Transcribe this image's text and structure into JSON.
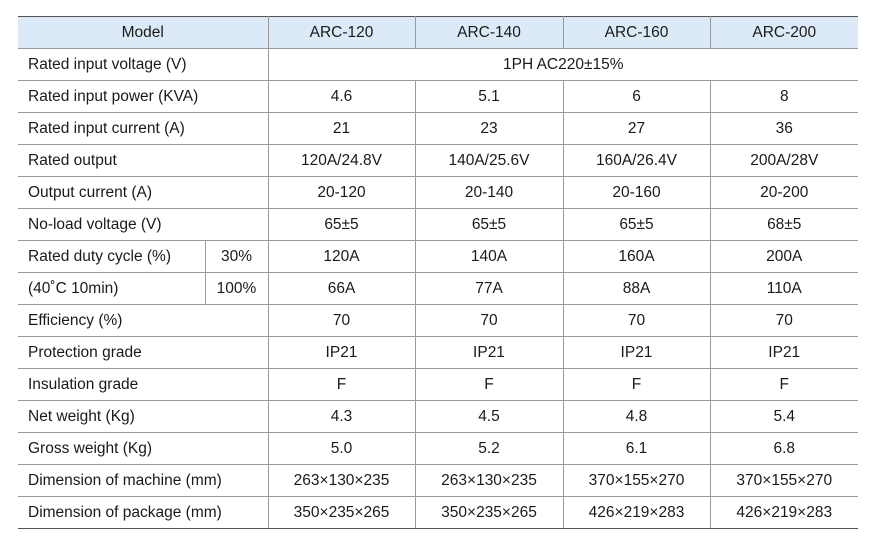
{
  "table": {
    "header": [
      "Model",
      "ARC-120",
      "ARC-140",
      "ARC-160",
      "ARC-200"
    ],
    "rows": [
      [
        "Rated input voltage (V)",
        "1PH AC220±15%"
      ],
      [
        "Rated input power (KVA)",
        "4.6",
        "5.1",
        "6",
        "8"
      ],
      [
        "Rated input current (A)",
        "21",
        "23",
        "27",
        "36"
      ],
      [
        "Rated output",
        "120A/24.8V",
        "140A/25.6V",
        "160A/26.4V",
        "200A/28V"
      ],
      [
        "Output current (A)",
        "20-120",
        "20-140",
        "20-160",
        "20-200"
      ],
      [
        "No-load voltage (V)",
        "65±5",
        "65±5",
        "65±5",
        "68±5"
      ],
      [
        "Rated duty cycle (%)",
        "30%",
        "120A",
        "140A",
        "160A",
        "200A"
      ],
      [
        "(40˚C 10min)",
        "100%",
        "66A",
        "77A",
        "88A",
        "110A"
      ],
      [
        "Efficiency (%)",
        "70",
        "70",
        "70",
        "70"
      ],
      [
        "Protection grade",
        "IP21",
        "IP21",
        "IP21",
        "IP21"
      ],
      [
        "Insulation grade",
        "F",
        "F",
        "F",
        "F"
      ],
      [
        "Net weight (Kg)",
        "4.3",
        "4.5",
        "4.8",
        "5.4"
      ],
      [
        "Gross weight (Kg)",
        "5.0",
        "5.2",
        "6.1",
        "6.8"
      ],
      [
        "Dimension of machine (mm)",
        "263×130×235",
        "263×130×235",
        "370×155×270",
        "370×155×270"
      ],
      [
        "Dimension of package (mm)",
        "350×235×265",
        "350×235×265",
        "426×219×283",
        "426×219×283"
      ]
    ]
  }
}
